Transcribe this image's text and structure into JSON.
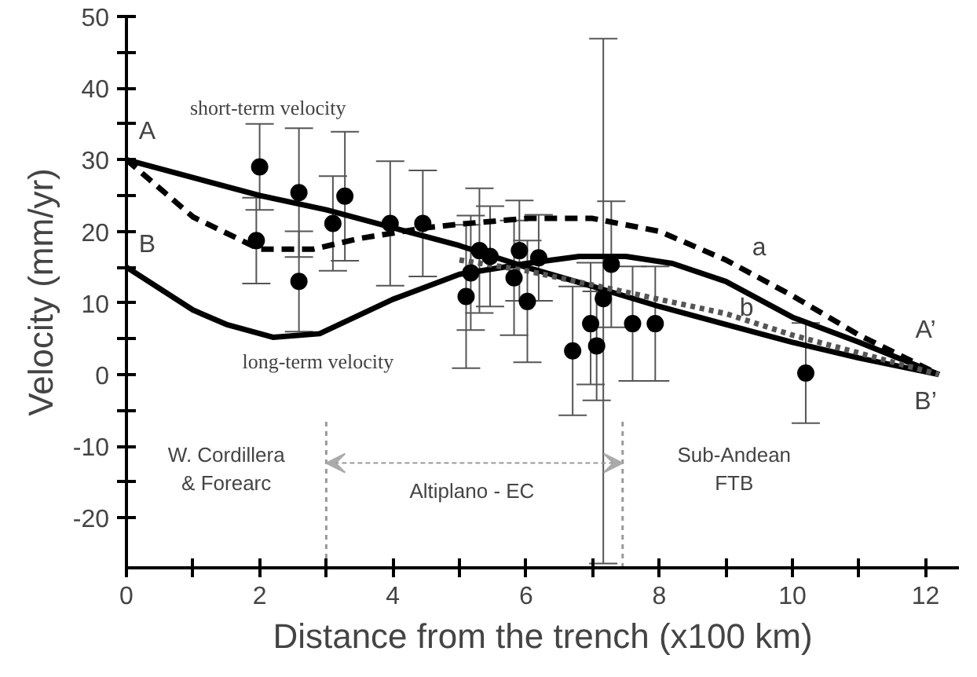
{
  "chart_data": {
    "type": "line",
    "xlabel": "Distance from the trench (x100 km)",
    "ylabel": "Velocity (mm/yr)",
    "xlim": [
      0,
      12.5
    ],
    "ylim": [
      -27,
      50
    ],
    "xticks": [
      0,
      {
        "value": 1,
        "label": null
      },
      2,
      {
        "value": 3,
        "label": null
      },
      4,
      {
        "value": 5,
        "label": null
      },
      6,
      {
        "value": 7,
        "label": null
      },
      8,
      {
        "value": 9,
        "label": null
      },
      10,
      {
        "value": 11,
        "label": null
      },
      12
    ],
    "yticks": [
      -20,
      {
        "value": -15,
        "label": null
      },
      -10,
      {
        "value": -5,
        "label": null
      },
      0,
      {
        "value": 5,
        "label": null
      },
      10,
      {
        "value": 15,
        "label": null
      },
      20,
      {
        "value": 25,
        "label": null
      },
      30,
      {
        "value": 35,
        "label": null
      },
      40,
      {
        "value": 45,
        "label": null
      },
      50
    ],
    "grid": false,
    "series": [
      {
        "color": "#000000",
        "line_style": "solid",
        "x": [
          0,
          1,
          2,
          3,
          4,
          5,
          6,
          7,
          8,
          9,
          10,
          11,
          12.2
        ],
        "values": [
          30,
          27.5,
          25,
          23,
          20.5,
          18,
          15,
          12.3,
          9.5,
          7,
          4.5,
          2.3,
          0
        ]
      },
      {
        "color": "#000000",
        "line_style": "solid",
        "x": [
          0,
          1,
          1.5,
          2.2,
          2.9,
          4,
          5,
          6,
          6.8,
          7.5,
          8.2,
          9,
          10,
          11,
          12.2
        ],
        "values": [
          15,
          9,
          7,
          5.2,
          5.7,
          10.5,
          14,
          15.5,
          16.5,
          16.5,
          15.5,
          13,
          8,
          4.5,
          0
        ]
      },
      {
        "color": "#000000",
        "line_style": "dashed",
        "x": [
          0,
          1,
          2,
          2.8,
          3.5,
          4.5,
          5,
          6,
          7,
          8,
          9,
          10,
          11,
          12.2
        ],
        "values": [
          30,
          22,
          17.5,
          17.5,
          19,
          20.5,
          21,
          21.8,
          21.8,
          20,
          16,
          11,
          5.5,
          0
        ]
      },
      {
        "color": "#555555",
        "line_style": "dotted",
        "x": [
          5,
          6,
          7,
          8,
          9,
          10,
          11,
          12.2
        ],
        "values": [
          16,
          14.5,
          12.5,
          10.5,
          8.5,
          5.5,
          3,
          0
        ]
      },
      {
        "type": "scatter",
        "color": "#000000",
        "marker": "circle",
        "x": [
          2.0,
          1.95,
          2.59,
          2.59,
          3.28,
          3.1,
          3.96,
          4.45,
          5.1,
          5.17,
          5.3,
          5.46,
          5.82,
          5.9,
          6.02,
          6.19,
          6.7,
          6.97,
          7.06,
          7.16,
          7.28,
          7.6,
          7.94,
          10.2
        ],
        "values": [
          29,
          18.7,
          25.4,
          13,
          24.9,
          21.1,
          21.1,
          21.1,
          10.9,
          14.2,
          17.3,
          16.5,
          13.5,
          17.3,
          10.2,
          16.3,
          3.3,
          7.1,
          4,
          10.6,
          15.4,
          7.1,
          7.1,
          0.2
        ],
        "errors": [
          6,
          6,
          9,
          7,
          9,
          6.6,
          8.7,
          7.4,
          10,
          8,
          8.7,
          7,
          8,
          7,
          8.5,
          6,
          9,
          8.5,
          7.6,
          [
            -26.4,
            46.9
          ],
          8.8,
          8,
          8,
          7
        ]
      }
    ],
    "ref_lines": [
      {
        "axis": "x",
        "value": 3,
        "color": "#999999",
        "line_style": "dotted"
      },
      {
        "axis": "x",
        "value": 7.45,
        "color": "#999999",
        "line_style": "dotted"
      }
    ],
    "annotations": [
      "A",
      "B",
      "A’",
      "B’",
      "a",
      "b",
      "short-term velocity",
      "long-term velocity",
      "W. Cordillera\n& Forearc",
      "Altiplano - EC",
      "Sub-Andean\nFTB"
    ]
  }
}
